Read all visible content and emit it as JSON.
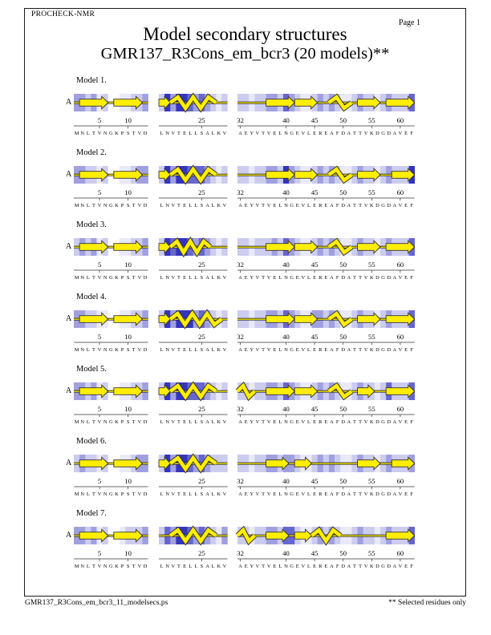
{
  "header": {
    "app": "PROCHECK-NMR",
    "page": "Page  1",
    "title": "Model secondary structures",
    "subtitle": "GMR137_R3Cons_em_bcr3 (20 models)**"
  },
  "footer": {
    "left": "GMR137_R3Cons_em_bcr3_11_modelsecs.ps",
    "right": "** Selected residues only"
  },
  "colors": {
    "strand_fill": "#ffee00",
    "outline": "#333333",
    "baseline_outer": "#222222",
    "ruler": "#333333",
    "shade_palette": [
      "#ffffff",
      "#e9e9f8",
      "#ccccef",
      "#a0a0e0",
      "#6666cf",
      "#3434bf"
    ]
  },
  "segments": [
    {
      "id": "s1",
      "start": 1,
      "seq": "MNLTVNGKPSTVD",
      "ticks": [
        5,
        10
      ]
    },
    {
      "id": "s2",
      "start": 18,
      "seq": "LNVTELLSALKV",
      "ticks": [
        25
      ]
    },
    {
      "id": "s3",
      "start": 32,
      "seq": "AEYVTVELNGEVLEREAFDATTVKDGDAVEF",
      "ticks": [
        32,
        40,
        45,
        50,
        55,
        60
      ]
    }
  ],
  "legend": {
    "E": "beta-strand-arrow",
    "H": "helix-ribbon"
  },
  "models": [
    {
      "label": "Model  1.",
      "chain": "A",
      "elements": {
        "s1": [
          [
            "E",
            2,
            6
          ],
          [
            "E",
            8,
            12
          ]
        ],
        "s2": [
          [
            "E",
            18,
            19
          ],
          [
            "H",
            20,
            27
          ]
        ],
        "s3": [
          [
            "E",
            37,
            41
          ],
          [
            "E",
            42,
            45
          ],
          [
            "H",
            48,
            51
          ],
          [
            "E",
            53,
            56
          ],
          [
            "E",
            58,
            62
          ]
        ]
      },
      "shades": {
        "s1": "3323120011223",
        "s2": "253554343212",
        "s3": "2212233243211232321123221232224"
      }
    },
    {
      "label": "Model  2.",
      "chain": "A",
      "elements": {
        "s1": [
          [
            "E",
            2,
            6
          ],
          [
            "E",
            8,
            12
          ]
        ],
        "s2": [
          [
            "E",
            18,
            19
          ],
          [
            "H",
            20,
            27
          ]
        ],
        "s3": [
          [
            "E",
            37,
            41
          ],
          [
            "E",
            42,
            45
          ],
          [
            "H",
            48,
            51
          ],
          [
            "E",
            53,
            56
          ],
          [
            "E",
            59,
            62
          ]
        ]
      },
      "shades": {
        "s1": "3322120011233",
        "s2": "253554443212",
        "s3": "2212233253211232321123221232225"
      }
    },
    {
      "label": "Model  3.",
      "chain": "A",
      "elements": {
        "s1": [
          [
            "E",
            2,
            6
          ],
          [
            "E",
            8,
            12
          ]
        ],
        "s2": [
          [
            "E",
            18,
            19
          ],
          [
            "H",
            20,
            26
          ]
        ],
        "s3": [
          [
            "E",
            37,
            41
          ],
          [
            "E",
            42,
            45
          ],
          [
            "H",
            48,
            51
          ],
          [
            "E",
            53,
            56
          ],
          [
            "E",
            58,
            62
          ]
        ]
      },
      "shades": {
        "s1": "2323120011223",
        "s2": "254554343212",
        "s3": "2212223243211232321123221232224"
      }
    },
    {
      "label": "Model  4.",
      "chain": "A",
      "elements": {
        "s1": [
          [
            "E",
            2,
            6
          ],
          [
            "E",
            8,
            12
          ]
        ],
        "s2": [
          [
            "E",
            18,
            19
          ],
          [
            "H",
            20,
            28
          ]
        ],
        "s3": [
          [
            "E",
            37,
            41
          ],
          [
            "E",
            42,
            45
          ],
          [
            "H",
            48,
            51
          ],
          [
            "E",
            53,
            56
          ],
          [
            "E",
            58,
            62
          ]
        ]
      },
      "shades": {
        "s1": "3322110011223",
        "s2": "253555343212",
        "s3": "2212233243211332321123221232224"
      }
    },
    {
      "label": "Model  5.",
      "chain": "A",
      "elements": {
        "s1": [
          [
            "E",
            2,
            6
          ],
          [
            "E",
            8,
            12
          ]
        ],
        "s2": [
          [
            "E",
            18,
            19
          ],
          [
            "H",
            20,
            27
          ]
        ],
        "s3": [
          [
            "H",
            32,
            34
          ],
          [
            "E",
            37,
            41
          ],
          [
            "E",
            42,
            45
          ],
          [
            "H",
            48,
            51
          ],
          [
            "E",
            53,
            55
          ],
          [
            "E",
            58,
            62
          ]
        ]
      },
      "shades": {
        "s1": "3323120011223",
        "s2": "253554443212",
        "s3": "2212233243211232321123221242224"
      }
    },
    {
      "label": "Model  6.",
      "chain": "A",
      "elements": {
        "s1": [
          [
            "E",
            2,
            6
          ],
          [
            "E",
            8,
            12
          ]
        ],
        "s2": [
          [
            "E",
            18,
            19
          ],
          [
            "H",
            20,
            27
          ]
        ],
        "s3": [
          [
            "E",
            37,
            40
          ],
          [
            "E",
            42,
            44
          ],
          [
            "E",
            53,
            56
          ],
          [
            "E",
            59,
            62
          ]
        ]
      },
      "shades": {
        "s1": "2322120011233",
        "s2": "253554343222",
        "s3": "2212233233211232321123221232223"
      }
    },
    {
      "label": "Model  7.",
      "chain": "A",
      "elements": {
        "s1": [
          [
            "E",
            2,
            6
          ],
          [
            "E",
            8,
            12
          ]
        ],
        "s2": [
          [
            "H",
            20,
            27
          ]
        ],
        "s3": [
          [
            "H",
            32,
            34
          ],
          [
            "E",
            37,
            40
          ],
          [
            "E",
            42,
            44
          ],
          [
            "H",
            45,
            49
          ],
          [
            "E",
            58,
            62
          ]
        ]
      },
      "shades": {
        "s1": "3323120012223",
        "s2": "243554343213",
        "s3": "2212233244211232321123221232224"
      }
    }
  ]
}
